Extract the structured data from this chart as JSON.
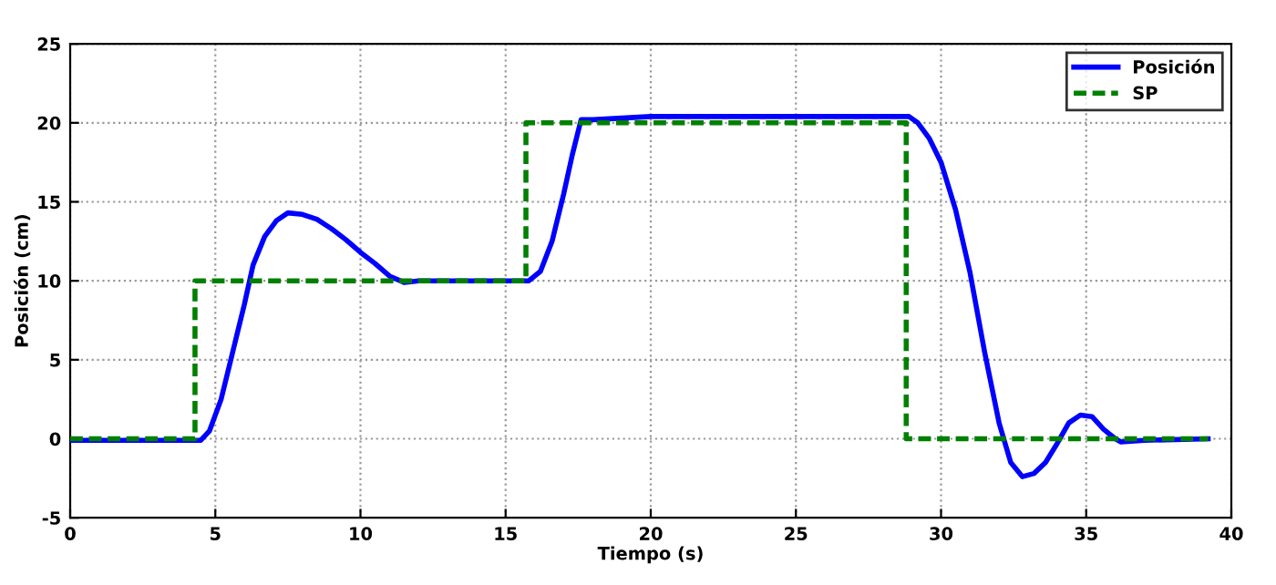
{
  "chart_data": {
    "type": "line",
    "xlabel": "Tiempo (s)",
    "ylabel": "Posición (cm)",
    "xlim": [
      0,
      40
    ],
    "xticks": [
      0,
      5,
      10,
      15,
      20,
      25,
      30,
      35,
      40
    ],
    "ylim": [
      -5,
      25
    ],
    "yticks": [
      -5,
      0,
      5,
      10,
      15,
      20,
      25
    ],
    "grid": true,
    "legend": "top right",
    "series": [
      {
        "name": "Posición",
        "color": "#0000ff",
        "line_style": "solid",
        "x": [
          0,
          4.5,
          4.8,
          5.2,
          5.6,
          6.0,
          6.3,
          6.7,
          7.1,
          7.5,
          8.0,
          8.5,
          9.0,
          9.5,
          10.0,
          10.5,
          11.0,
          11.5,
          12,
          13,
          15,
          15.8,
          16.2,
          16.6,
          17.0,
          17.3,
          17.6,
          18,
          19,
          20,
          25,
          28.9,
          29.2,
          29.6,
          30,
          30.5,
          31,
          31.5,
          32,
          32.4,
          32.8,
          33.2,
          33.6,
          34,
          34.4,
          34.8,
          35.2,
          35.6,
          36,
          36.2,
          37,
          39.2
        ],
        "values": [
          -0.1,
          -0.1,
          0.5,
          2.5,
          5.5,
          8.5,
          11,
          12.8,
          13.8,
          14.3,
          14.2,
          13.9,
          13.3,
          12.6,
          11.8,
          11.1,
          10.3,
          9.9,
          10,
          10,
          10,
          10,
          10.6,
          12.5,
          15.5,
          18,
          20.2,
          20.2,
          20.3,
          20.4,
          20.4,
          20.4,
          20,
          19,
          17.5,
          14.5,
          10.5,
          5.5,
          1,
          -1.5,
          -2.4,
          -2.2,
          -1.5,
          -0.3,
          1,
          1.5,
          1.4,
          0.6,
          0,
          -0.2,
          -0.1,
          0
        ]
      },
      {
        "name": "SP",
        "color": "#008000",
        "line_style": "dashed",
        "x": [
          0,
          4.3,
          4.3,
          15.7,
          15.7,
          28.8,
          28.8,
          39.2
        ],
        "values": [
          0,
          0,
          10,
          10,
          20,
          20,
          0,
          0
        ]
      }
    ]
  }
}
